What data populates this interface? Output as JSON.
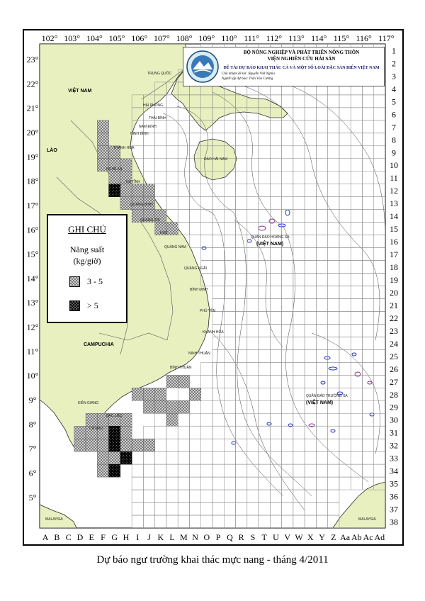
{
  "map": {
    "lon_labels": [
      "102°",
      "103°",
      "104°",
      "105°",
      "106°",
      "107°",
      "108°",
      "109°",
      "110°",
      "111°",
      "112°",
      "113°",
      "114°",
      "115°",
      "116°",
      "117°"
    ],
    "lat_labels": [
      "23°",
      "22°",
      "21°",
      "20°",
      "19°",
      "18°",
      "17°",
      "16°",
      "15°",
      "14°",
      "13°",
      "12°",
      "11°",
      "10°",
      "9°",
      "8°",
      "7°",
      "6°",
      "5°"
    ],
    "col_labels": [
      "A",
      "B",
      "C",
      "D",
      "E",
      "F",
      "G",
      "H",
      "I",
      "J",
      "K",
      "L",
      "M",
      "N",
      "O",
      "P",
      "Q",
      "R",
      "S",
      "T",
      "U",
      "V",
      "W",
      "X",
      "Y",
      "Z",
      "Aa",
      "Ab",
      "Ac",
      "Ad"
    ],
    "row_labels": [
      "1",
      "2",
      "3",
      "4",
      "5",
      "6",
      "7",
      "8",
      "9",
      "10",
      "11",
      "12",
      "13",
      "14",
      "15",
      "16",
      "17",
      "18",
      "19",
      "20",
      "21",
      "22",
      "23",
      "24",
      "25",
      "26",
      "27",
      "28",
      "29",
      "30",
      "31",
      "32",
      "33",
      "34",
      "35",
      "36",
      "37",
      "38"
    ],
    "countries": {
      "vietnam": "VIỆT NAM",
      "laos": "LÀO",
      "cambodia": "CAMPUCHIA",
      "china": "TRUNG QUỐC",
      "hainan": "ĐẢO HẢI NAM",
      "paracel_vn": "(VIỆT NAM)",
      "spratly_vn": "(VIỆT NAM)",
      "malaysia_w": "MALAYSIA",
      "malaysia_e": "MALAYSIA"
    },
    "provinces": [
      "THANH HÓA",
      "NGHỆ AN",
      "HÀ TĨNH",
      "QUẢNG BÌNH",
      "QUẢNG TRỊ",
      "HUẾ",
      "QUẢNG NAM",
      "QUẢNG NGÃI",
      "BÌNH ĐỊNH",
      "PHÚ YÊN",
      "KHÁNH HÒA",
      "NINH THUẬN",
      "BÌNH THUẬN",
      "BẠC LIÊU",
      "CÀ MAU",
      "HẢI PHÒNG",
      "THÁI BÌNH",
      "NAM ĐỊNH",
      "NINH BÌNH",
      "KIÊN GIANG"
    ],
    "archipelagos": {
      "paracel": "QUẦN ĐẢO HOÀNG SA",
      "spratly": "QUẦN ĐẢO TRƯỜNG SA"
    },
    "forecast_cells": {
      "mid": [
        [
          5,
          6
        ],
        [
          5,
          7
        ],
        [
          5,
          8
        ],
        [
          5,
          9
        ],
        [
          6,
          8
        ],
        [
          6,
          9
        ],
        [
          6,
          10
        ],
        [
          6,
          11
        ],
        [
          7,
          9
        ],
        [
          7,
          10
        ],
        [
          7,
          11
        ],
        [
          7,
          12
        ],
        [
          8,
          11
        ],
        [
          8,
          12
        ],
        [
          8,
          13
        ],
        [
          9,
          11
        ],
        [
          9,
          12
        ],
        [
          9,
          13
        ],
        [
          10,
          13
        ],
        [
          10,
          14
        ],
        [
          11,
          14
        ],
        [
          8,
          27
        ],
        [
          9,
          27
        ],
        [
          10,
          27
        ],
        [
          11,
          26
        ],
        [
          12,
          26
        ],
        [
          13,
          27
        ],
        [
          9,
          28
        ],
        [
          10,
          28
        ],
        [
          11,
          28
        ],
        [
          12,
          28
        ],
        [
          11,
          29
        ],
        [
          4,
          29
        ],
        [
          5,
          29
        ],
        [
          6,
          29
        ],
        [
          7,
          29
        ],
        [
          3,
          30
        ],
        [
          4,
          30
        ],
        [
          5,
          30
        ],
        [
          6,
          30
        ],
        [
          7,
          30
        ],
        [
          3,
          31
        ],
        [
          4,
          31
        ],
        [
          5,
          31
        ],
        [
          6,
          31
        ],
        [
          7,
          31
        ],
        [
          8,
          31
        ],
        [
          9,
          31
        ],
        [
          5,
          32
        ],
        [
          6,
          32
        ],
        [
          7,
          32
        ],
        [
          5,
          33
        ]
      ],
      "high": [
        [
          6,
          11
        ],
        [
          6,
          30
        ],
        [
          6,
          31
        ],
        [
          7,
          32
        ],
        [
          6,
          33
        ]
      ]
    }
  },
  "header": {
    "line1": "BỘ NÔNG NGHIỆP VÀ PHÁT TRIỂN NÔNG THÔN",
    "line2": "VIỆN NGHIÊN CỨU HẢI SẢN",
    "line3": "ĐỀ TÀI DỰ BÁO KHAI THÁC CÁ VÀ MỘT SỐ LOÀI ĐẶC SẢN BIỂN VIỆT NAM",
    "line4": "Chủ nhiệm đề tài: Nguyễn Viết Nghĩa",
    "line5": "Người lập dự báo: Trần Văn Cường"
  },
  "legend": {
    "title": "GHI CHÚ",
    "subtitle1": "Năng suất",
    "subtitle2": "(kg/giờ)",
    "items": [
      {
        "label": "3 - 5"
      },
      {
        "label": "> 5"
      }
    ]
  },
  "caption": "Dự báo ngư trường khai thác mực nang - tháng 4/2011",
  "colors": {
    "land": "#e8f0c0",
    "coast": "#2a2a2a",
    "grid": "#7a7a7a",
    "island_blue": "#2233cc",
    "island_purple": "#8a2a8a"
  }
}
